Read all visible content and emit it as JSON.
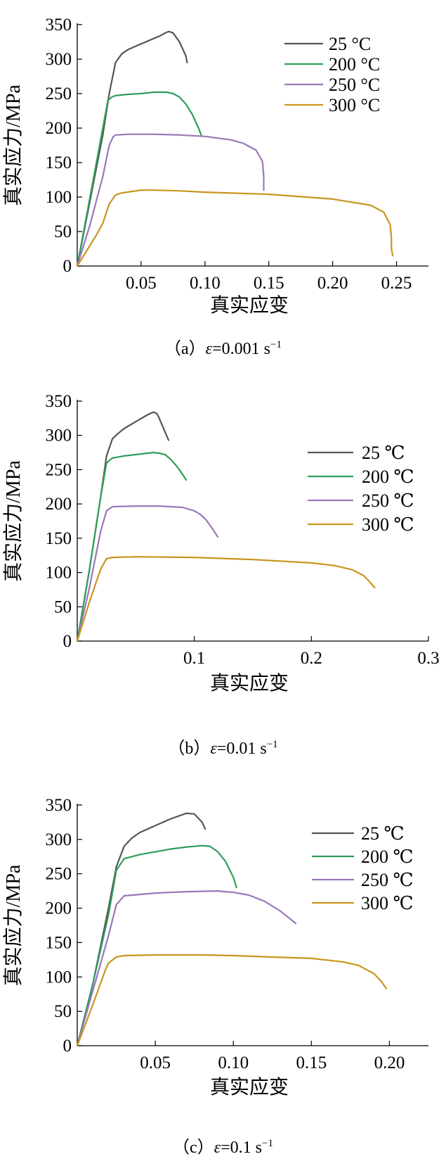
{
  "chart_data": [
    {
      "type": "line",
      "xlabel": "真实应变",
      "ylabel": "真实应力/MPa",
      "xlim": [
        0,
        0.275
      ],
      "ylim": [
        0,
        350
      ],
      "xticks": [
        "0.05",
        "0.10",
        "0.15",
        "0.20",
        "0.25"
      ],
      "xtick_values": [
        0.05,
        0.1,
        0.15,
        0.2,
        0.25
      ],
      "yticks": [
        "0",
        "50",
        "100",
        "150",
        "200",
        "250",
        "300",
        "350"
      ],
      "ytick_values": [
        0,
        50,
        100,
        150,
        200,
        250,
        300,
        350
      ],
      "grid": false,
      "legend": "top-right",
      "caption": {
        "prefix": "（a）",
        "symbol": "ε",
        "rate": "=0.001 s",
        "exponent": "−1"
      },
      "series": [
        {
          "name": "25 °C",
          "color": "#555555",
          "x": [
            0,
            0.01,
            0.02,
            0.025,
            0.03,
            0.035,
            0.04,
            0.05,
            0.06,
            0.065,
            0.07,
            0.072,
            0.075,
            0.08,
            0.085,
            0.086
          ],
          "y": [
            0,
            95,
            190,
            250,
            295,
            308,
            314,
            322,
            330,
            334,
            339,
            340,
            338,
            325,
            305,
            295
          ]
        },
        {
          "name": "200 °C",
          "color": "#2e9e5b",
          "x": [
            0,
            0.01,
            0.02,
            0.024,
            0.027,
            0.03,
            0.04,
            0.05,
            0.06,
            0.065,
            0.07,
            0.075,
            0.08,
            0.085,
            0.09,
            0.095,
            0.097
          ],
          "y": [
            0,
            100,
            200,
            240,
            245,
            247,
            249,
            250,
            252,
            252,
            252,
            250,
            245,
            235,
            220,
            200,
            190
          ]
        },
        {
          "name": "250 °C",
          "color": "#9b77b9",
          "x": [
            0,
            0.01,
            0.02,
            0.025,
            0.028,
            0.03,
            0.04,
            0.06,
            0.08,
            0.1,
            0.12,
            0.13,
            0.14,
            0.145,
            0.146,
            0.146
          ],
          "y": [
            0,
            60,
            130,
            175,
            187,
            190,
            191,
            191,
            190,
            188,
            183,
            178,
            168,
            152,
            130,
            110
          ]
        },
        {
          "name": "300 °C",
          "color": "#c9951e",
          "x": [
            0,
            0.01,
            0.015,
            0.02,
            0.025,
            0.03,
            0.035,
            0.05,
            0.06,
            0.08,
            0.1,
            0.15,
            0.2,
            0.23,
            0.24,
            0.245,
            0.246,
            0.246,
            0.247
          ],
          "y": [
            0,
            30,
            45,
            62,
            90,
            103,
            106,
            110,
            110,
            109,
            107,
            104,
            97,
            88,
            78,
            60,
            40,
            25,
            15
          ]
        }
      ]
    },
    {
      "type": "line",
      "xlabel": "真实应变",
      "ylabel": "真实应力/MPa",
      "xlim": [
        0,
        0.3
      ],
      "ylim": [
        0,
        350
      ],
      "xticks": [
        "0.1",
        "0.2",
        "0.3"
      ],
      "xtick_values": [
        0.1,
        0.2,
        0.3
      ],
      "yticks": [
        "0",
        "50",
        "100",
        "150",
        "200",
        "250",
        "300",
        "350"
      ],
      "ytick_values": [
        0,
        50,
        100,
        150,
        200,
        250,
        300,
        350
      ],
      "grid": false,
      "legend": "right",
      "caption": {
        "prefix": "（b）",
        "symbol": "ε",
        "rate": "=0.01 s",
        "exponent": "−1"
      },
      "series": [
        {
          "name": "25 ℃",
          "color": "#555555",
          "x": [
            0,
            0.01,
            0.02,
            0.025,
            0.03,
            0.035,
            0.04,
            0.05,
            0.06,
            0.065,
            0.068,
            0.07,
            0.075,
            0.078
          ],
          "y": [
            0,
            100,
            210,
            270,
            295,
            303,
            310,
            320,
            330,
            334,
            332,
            325,
            305,
            293
          ]
        },
        {
          "name": "200 ℃",
          "color": "#2e9e5b",
          "x": [
            0,
            0.01,
            0.02,
            0.025,
            0.03,
            0.04,
            0.05,
            0.06,
            0.065,
            0.07,
            0.075,
            0.08,
            0.085,
            0.09,
            0.093
          ],
          "y": [
            0,
            100,
            210,
            260,
            267,
            270,
            272,
            274,
            275,
            274,
            272,
            265,
            255,
            243,
            235
          ]
        },
        {
          "name": "250 ℃",
          "color": "#9b77b9",
          "x": [
            0,
            0.01,
            0.02,
            0.025,
            0.03,
            0.05,
            0.07,
            0.09,
            0.1,
            0.105,
            0.11,
            0.115,
            0.12
          ],
          "y": [
            0,
            75,
            160,
            190,
            196,
            197,
            197,
            195,
            190,
            185,
            177,
            165,
            152
          ]
        },
        {
          "name": "300 ℃",
          "color": "#c9951e",
          "x": [
            0,
            0.01,
            0.02,
            0.025,
            0.03,
            0.05,
            0.1,
            0.15,
            0.2,
            0.22,
            0.235,
            0.245,
            0.25,
            0.254
          ],
          "y": [
            0,
            55,
            105,
            120,
            122,
            123,
            122,
            119,
            114,
            110,
            104,
            95,
            86,
            78
          ]
        }
      ]
    },
    {
      "type": "line",
      "xlabel": "真实应变",
      "ylabel": "真实应力/MPa",
      "xlim": [
        0,
        0.225
      ],
      "ylim": [
        0,
        350
      ],
      "xticks": [
        "0.05",
        "0.10",
        "0.15",
        "0.20"
      ],
      "xtick_values": [
        0.05,
        0.1,
        0.15,
        0.2
      ],
      "yticks": [
        "0",
        "50",
        "100",
        "150",
        "200",
        "250",
        "300",
        "350"
      ],
      "ytick_values": [
        0,
        50,
        100,
        150,
        200,
        250,
        300,
        350
      ],
      "grid": false,
      "legend": "top-right",
      "caption": {
        "prefix": "（c）",
        "symbol": "ε",
        "rate": "=0.1 s",
        "exponent": "−1"
      },
      "series": [
        {
          "name": "25 ℃",
          "color": "#555555",
          "x": [
            0,
            0.01,
            0.02,
            0.025,
            0.03,
            0.035,
            0.04,
            0.05,
            0.06,
            0.07,
            0.075,
            0.08,
            0.082
          ],
          "y": [
            0,
            90,
            200,
            260,
            290,
            302,
            310,
            320,
            330,
            338,
            337,
            325,
            315
          ]
        },
        {
          "name": "200 ℃",
          "color": "#2e9e5b",
          "x": [
            0,
            0.01,
            0.02,
            0.025,
            0.03,
            0.04,
            0.05,
            0.06,
            0.07,
            0.08,
            0.085,
            0.09,
            0.095,
            0.1,
            0.102
          ],
          "y": [
            0,
            90,
            190,
            255,
            272,
            278,
            282,
            286,
            289,
            291,
            290,
            282,
            268,
            245,
            230
          ]
        },
        {
          "name": "250 ℃",
          "color": "#9b77b9",
          "x": [
            0,
            0.01,
            0.02,
            0.025,
            0.03,
            0.05,
            0.07,
            0.09,
            0.1,
            0.11,
            0.12,
            0.13,
            0.14
          ],
          "y": [
            0,
            80,
            160,
            205,
            218,
            222,
            224,
            225,
            223,
            219,
            210,
            196,
            178
          ]
        },
        {
          "name": "300 ℃",
          "color": "#c9951e",
          "x": [
            0,
            0.01,
            0.018,
            0.02,
            0.025,
            0.03,
            0.05,
            0.08,
            0.1,
            0.15,
            0.17,
            0.18,
            0.19,
            0.195,
            0.198
          ],
          "y": [
            0,
            60,
            110,
            120,
            129,
            131,
            132,
            132,
            131,
            127,
            122,
            117,
            105,
            93,
            83
          ]
        }
      ]
    }
  ]
}
